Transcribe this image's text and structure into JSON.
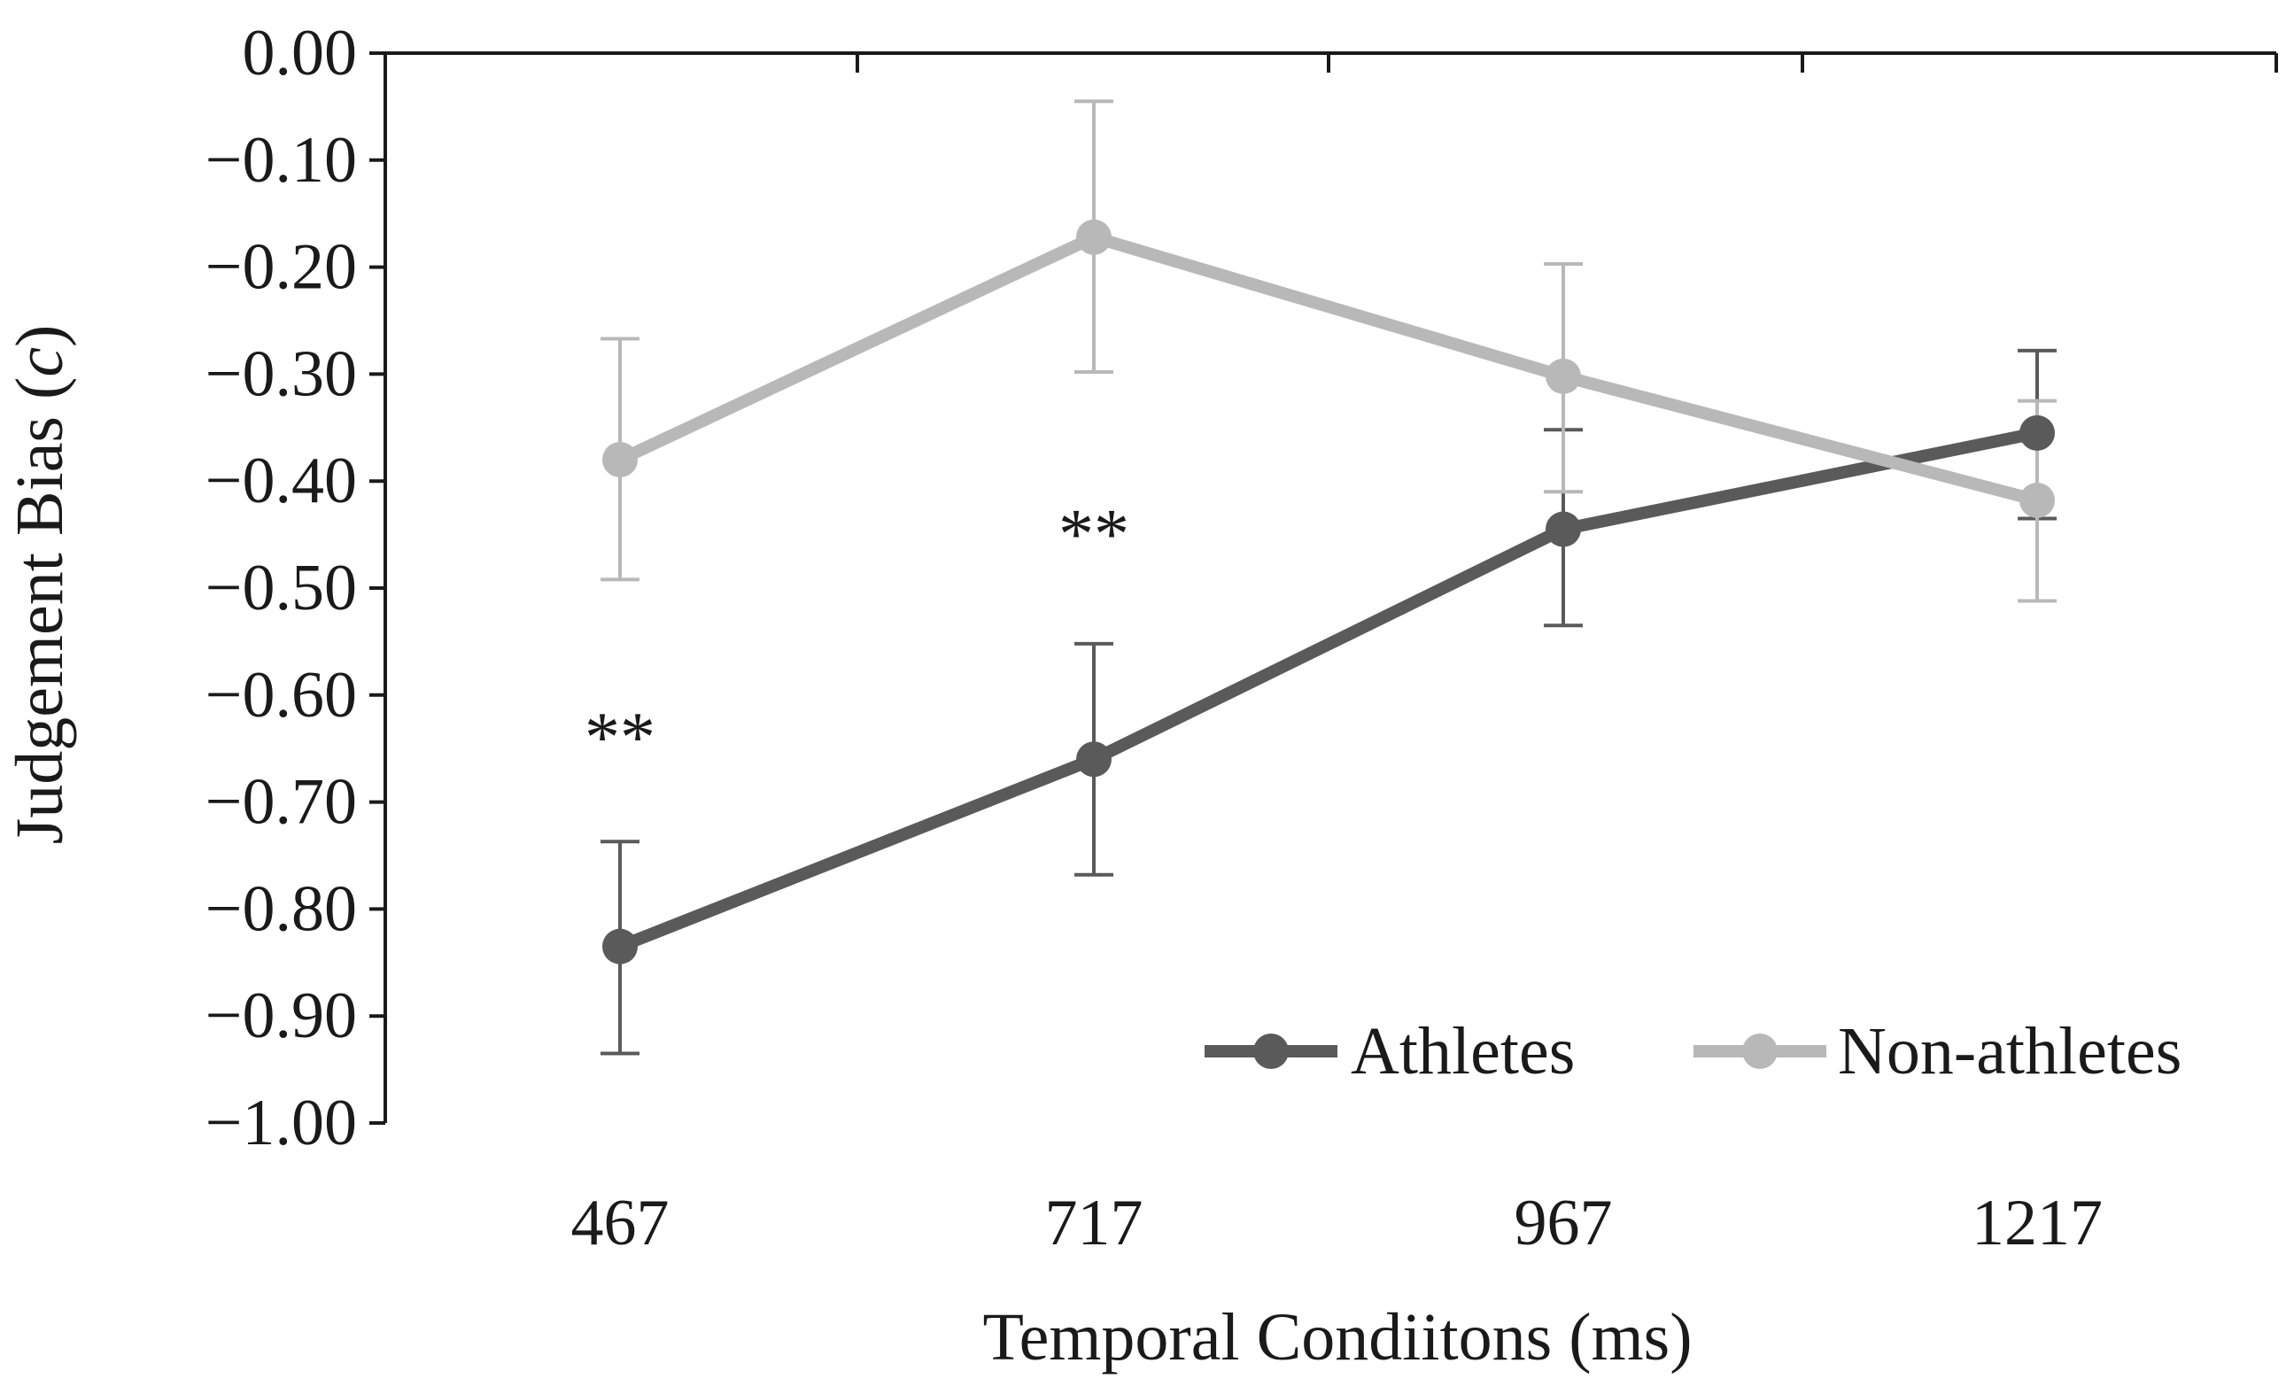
{
  "chart_data": {
    "type": "line",
    "title": "",
    "xlabel": "Temporal Condiitons (ms)",
    "ylabel_main": "Judgement Bias (",
    "ylabel_var": "c",
    "ylabel_close": ")",
    "categories": [
      "467",
      "717",
      "967",
      "1217"
    ],
    "ylim": [
      -1.0,
      0.0
    ],
    "yticks": [
      0.0,
      -0.1,
      -0.2,
      -0.3,
      -0.4,
      -0.5,
      -0.6,
      -0.7,
      -0.8,
      -0.9,
      -1.0
    ],
    "ytick_labels": [
      "0.00",
      "−0.10",
      "−0.20",
      "−0.30",
      "−0.40",
      "−0.50",
      "−0.60",
      "−0.70",
      "−0.80",
      "−0.90",
      "−1.00"
    ],
    "grid": false,
    "legend_position": "bottom-right",
    "series": [
      {
        "name": "Athletes",
        "color": "#5a5a5a",
        "values": [
          -0.835,
          -0.66,
          -0.445,
          -0.355
        ],
        "err_upper": [
          -0.737,
          -0.552,
          -0.352,
          -0.278
        ],
        "err_lower": [
          -0.935,
          -0.768,
          -0.535,
          -0.435
        ]
      },
      {
        "name": "Non-athletes",
        "color": "#b8b8b8",
        "values": [
          -0.38,
          -0.172,
          -0.302,
          -0.418
        ],
        "err_upper": [
          -0.267,
          -0.045,
          -0.197,
          -0.325
        ],
        "err_lower": [
          -0.492,
          -0.298,
          -0.41,
          -0.512
        ]
      }
    ],
    "annotations": [
      {
        "text": "**",
        "category_index": 0,
        "y": -0.62
      },
      {
        "text": "**",
        "category_index": 1,
        "y": -0.43
      }
    ]
  }
}
